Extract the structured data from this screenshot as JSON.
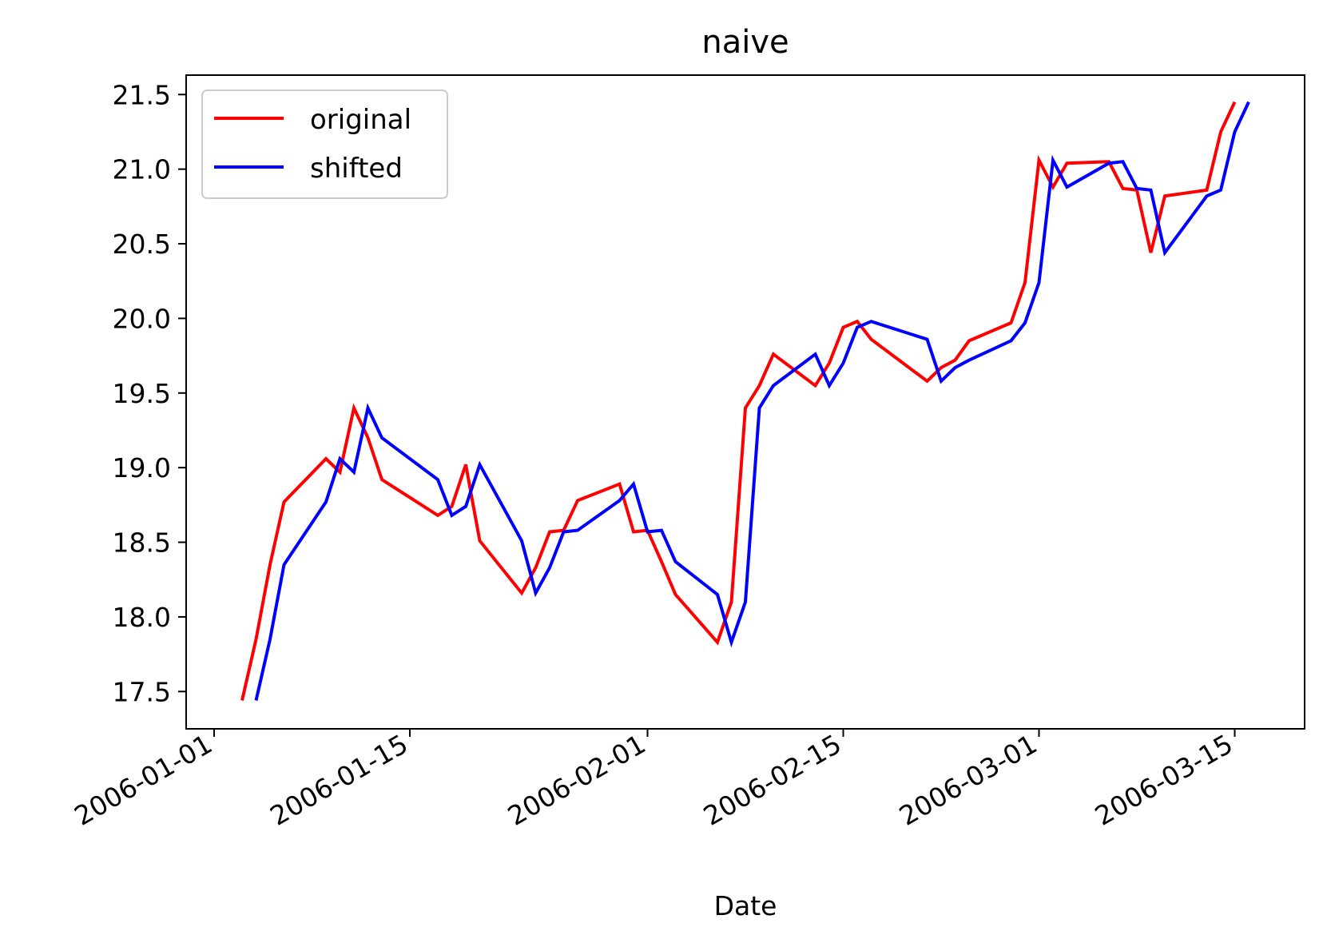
{
  "chart_data": {
    "type": "line",
    "title": "naive",
    "xlabel": "Date",
    "ylabel": "",
    "x_ticks": [
      "2006-01-01",
      "2006-01-15",
      "2006-02-01",
      "2006-02-15",
      "2006-03-01",
      "2006-03-15"
    ],
    "y_ticks": [
      17.5,
      18.0,
      18.5,
      19.0,
      19.5,
      20.0,
      20.5,
      21.0,
      21.5
    ],
    "y_tick_labels": [
      "17.5",
      "18.0",
      "18.5",
      "19.0",
      "19.5",
      "20.0",
      "20.5",
      "21.0",
      "21.5"
    ],
    "xlim": [
      "2005-12-30",
      "2006-03-20"
    ],
    "ylim": [
      17.25,
      21.63
    ],
    "grid": false,
    "legend": "upper-left",
    "series": [
      {
        "name": "original",
        "color": "#ff0000",
        "x": [
          "2006-01-03",
          "2006-01-04",
          "2006-01-05",
          "2006-01-06",
          "2006-01-09",
          "2006-01-10",
          "2006-01-11",
          "2006-01-12",
          "2006-01-13",
          "2006-01-17",
          "2006-01-18",
          "2006-01-19",
          "2006-01-20",
          "2006-01-23",
          "2006-01-24",
          "2006-01-25",
          "2006-01-26",
          "2006-01-27",
          "2006-01-30",
          "2006-01-31",
          "2006-02-01",
          "2006-02-02",
          "2006-02-03",
          "2006-02-06",
          "2006-02-07",
          "2006-02-08",
          "2006-02-09",
          "2006-02-10",
          "2006-02-13",
          "2006-02-14",
          "2006-02-15",
          "2006-02-16",
          "2006-02-17",
          "2006-02-21",
          "2006-02-22",
          "2006-02-23",
          "2006-02-24",
          "2006-02-27",
          "2006-02-28",
          "2006-03-01",
          "2006-03-02",
          "2006-03-03",
          "2006-03-06",
          "2006-03-07",
          "2006-03-08",
          "2006-03-09",
          "2006-03-10",
          "2006-03-13",
          "2006-03-14",
          "2006-03-15"
        ],
        "y": [
          17.44,
          17.85,
          18.35,
          18.77,
          19.06,
          18.97,
          19.4,
          19.2,
          18.92,
          18.68,
          18.74,
          19.02,
          18.51,
          18.16,
          18.33,
          18.57,
          18.58,
          18.78,
          18.89,
          18.57,
          18.58,
          18.37,
          18.15,
          17.83,
          18.1,
          19.4,
          19.55,
          19.76,
          19.55,
          19.7,
          19.94,
          19.98,
          19.86,
          19.58,
          19.67,
          19.72,
          19.85,
          19.97,
          20.24,
          21.06,
          20.88,
          21.04,
          21.05,
          20.87,
          20.86,
          20.44,
          20.82,
          20.86,
          21.25,
          21.45
        ]
      },
      {
        "name": "shifted",
        "color": "#0000ff",
        "x": [
          "2006-01-04",
          "2006-01-05",
          "2006-01-06",
          "2006-01-09",
          "2006-01-10",
          "2006-01-11",
          "2006-01-12",
          "2006-01-13",
          "2006-01-17",
          "2006-01-18",
          "2006-01-19",
          "2006-01-20",
          "2006-01-23",
          "2006-01-24",
          "2006-01-25",
          "2006-01-26",
          "2006-01-27",
          "2006-01-30",
          "2006-01-31",
          "2006-02-01",
          "2006-02-02",
          "2006-02-03",
          "2006-02-06",
          "2006-02-07",
          "2006-02-08",
          "2006-02-09",
          "2006-02-10",
          "2006-02-13",
          "2006-02-14",
          "2006-02-15",
          "2006-02-16",
          "2006-02-17",
          "2006-02-21",
          "2006-02-22",
          "2006-02-23",
          "2006-02-24",
          "2006-02-27",
          "2006-02-28",
          "2006-03-01",
          "2006-03-02",
          "2006-03-03",
          "2006-03-06",
          "2006-03-07",
          "2006-03-08",
          "2006-03-09",
          "2006-03-10",
          "2006-03-13",
          "2006-03-14",
          "2006-03-15",
          "2006-03-16"
        ],
        "y": [
          17.44,
          17.85,
          18.35,
          18.77,
          19.06,
          18.97,
          19.4,
          19.2,
          18.92,
          18.68,
          18.74,
          19.02,
          18.51,
          18.16,
          18.33,
          18.57,
          18.58,
          18.78,
          18.89,
          18.57,
          18.58,
          18.37,
          18.15,
          17.83,
          18.1,
          19.4,
          19.55,
          19.76,
          19.55,
          19.7,
          19.94,
          19.98,
          19.86,
          19.58,
          19.67,
          19.72,
          19.85,
          19.97,
          20.24,
          21.06,
          20.88,
          21.04,
          21.05,
          20.87,
          20.86,
          20.44,
          20.82,
          20.86,
          21.25,
          21.45
        ]
      }
    ]
  }
}
